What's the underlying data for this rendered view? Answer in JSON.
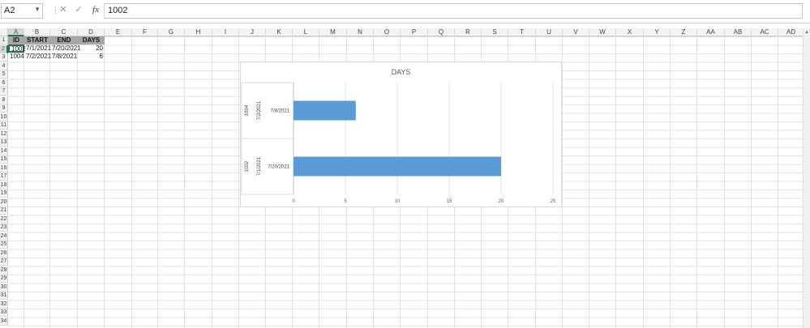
{
  "formula_bar": {
    "name_box": "A2",
    "cancel_icon": "✕",
    "enter_icon": "✓",
    "fx_label": "fx",
    "formula": "1002"
  },
  "columns": [
    "A",
    "B",
    "C",
    "D",
    "E",
    "F",
    "G",
    "H",
    "I",
    "J",
    "K",
    "L",
    "M",
    "N",
    "O",
    "P",
    "Q",
    "R",
    "S",
    "T",
    "U",
    "V",
    "W",
    "X",
    "Y",
    "Z",
    "AA",
    "AB",
    "AC",
    "AD"
  ],
  "rows": [
    "1",
    "2",
    "3",
    "4",
    "5",
    "6",
    "7",
    "8",
    "9",
    "10",
    "11",
    "12",
    "13",
    "14",
    "15",
    "16",
    "17",
    "18",
    "19",
    "20",
    "21",
    "22",
    "23",
    "24",
    "25",
    "26",
    "27",
    "28",
    "29",
    "30",
    "31",
    "32",
    "33",
    "34"
  ],
  "selected_cell": "A2",
  "table": {
    "headers": [
      "ID",
      "START",
      "END",
      "DAYS"
    ],
    "rows": [
      [
        "1002",
        "7/1/2021",
        "7/20/2021",
        "20"
      ],
      [
        "1004",
        "7/2/2021",
        "7/8/2021",
        "6"
      ]
    ]
  },
  "chart_data": {
    "type": "bar",
    "orientation": "horizontal",
    "title": "DAYS",
    "categories": [
      {
        "id": "1002",
        "start": "7/1/2021",
        "end": "7/20/2021"
      },
      {
        "id": "1004",
        "start": "7/2/2021",
        "end": "7/8/2021"
      }
    ],
    "values": [
      20,
      6
    ],
    "xlim": [
      0,
      25
    ],
    "x_ticks": [
      "0",
      "5",
      "10",
      "15",
      "20",
      "25"
    ],
    "bar_color": "#5b9bd5",
    "grid": true
  }
}
